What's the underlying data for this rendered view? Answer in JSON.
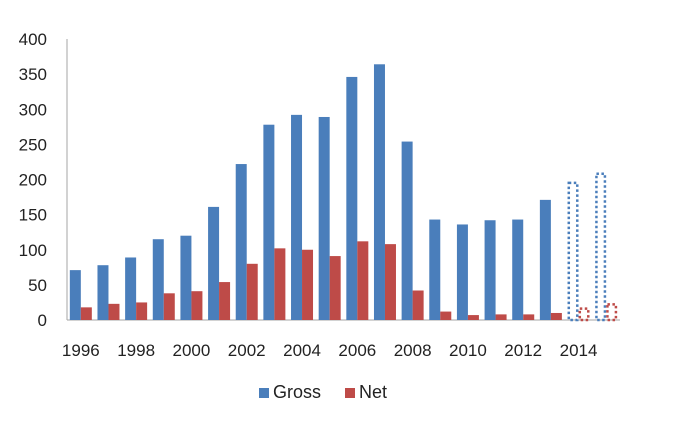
{
  "chart_data": {
    "type": "bar",
    "categories": [
      "1996",
      "1997",
      "1998",
      "1999",
      "2000",
      "2001",
      "2002",
      "2003",
      "2004",
      "2005",
      "2006",
      "2007",
      "2008",
      "2009",
      "2010",
      "2011",
      "2012",
      "2013",
      "2014",
      "2015"
    ],
    "x_tick_labels": [
      "1996",
      "1998",
      "2000",
      "2002",
      "2004",
      "2006",
      "2008",
      "2010",
      "2012",
      "2014"
    ],
    "series": [
      {
        "name": "Gross",
        "color": "#4a7ebb",
        "values": [
          71,
          78,
          89,
          115,
          120,
          161,
          222,
          278,
          292,
          289,
          346,
          364,
          254,
          143,
          136,
          142,
          143,
          171,
          197,
          210
        ]
      },
      {
        "name": "Net",
        "color": "#be4b48",
        "values": [
          18,
          23,
          25,
          38,
          41,
          54,
          80,
          102,
          100,
          91,
          112,
          108,
          42,
          12,
          7,
          8,
          8,
          10,
          18,
          24
        ]
      }
    ],
    "projected_categories": [
      "2014",
      "2015"
    ],
    "ylim": [
      0,
      400
    ],
    "y_ticks": [
      0,
      50,
      100,
      150,
      200,
      250,
      300,
      350,
      400
    ],
    "grid": false,
    "legend_position": "bottom-center",
    "title": "",
    "xlabel": "",
    "ylabel": ""
  }
}
